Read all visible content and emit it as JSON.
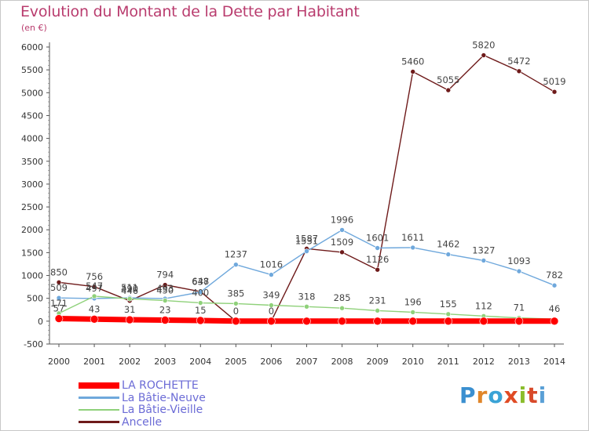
{
  "title": "Evolution du Montant de la Dette par Habitant",
  "unit": "(en €)",
  "logo": {
    "text": "Proxiti",
    "letter_colors": [
      "#3a8fd0",
      "#e0862a",
      "#3aa3d6",
      "#e04b24",
      "#8abd2c",
      "#d84a2a",
      "#5aa0d6"
    ]
  },
  "chart_data": {
    "type": "line",
    "x": [
      "2000",
      "2001",
      "2002",
      "2003",
      "2004",
      "2005",
      "2006",
      "2007",
      "2008",
      "2009",
      "2010",
      "2011",
      "2012",
      "2013",
      "2014"
    ],
    "ylim": [
      -500,
      6000
    ],
    "yticks": [
      -500,
      0,
      500,
      1000,
      1500,
      2000,
      2500,
      3000,
      3500,
      4000,
      4500,
      5000,
      5500,
      6000
    ],
    "grid": false,
    "legend_position": "bottom-left",
    "series": [
      {
        "name": "LA ROCHETTE",
        "color": "#ff0000",
        "values": [
          57,
          43,
          31,
          23,
          15,
          0,
          0,
          0,
          0,
          0,
          0,
          0,
          0,
          0,
          0
        ],
        "labels": [
          "57",
          "43",
          "31",
          "23",
          "15",
          "",
          "",
          "",
          "",
          "",
          "",
          "",
          "",
          "",
          ""
        ]
      },
      {
        "name": "La Bâtie-Neuve",
        "color": "#6fa8dc",
        "values": [
          509,
          497,
          511,
          493,
          637,
          1237,
          1016,
          1531,
          1996,
          1601,
          1611,
          1462,
          1327,
          1093,
          782
        ],
        "labels": [
          "509",
          "497",
          "511",
          "493",
          "637",
          "1237",
          "1016",
          "1531",
          "1996",
          "1601",
          "1611",
          "1462",
          "1327",
          "1093",
          "782"
        ]
      },
      {
        "name": "La Bâtie-Vieille",
        "color": "#8fd17a",
        "values": [
          171,
          547,
          490,
          450,
          400,
          385,
          349,
          318,
          285,
          231,
          196,
          155,
          112,
          71,
          46
        ],
        "labels": [
          "171",
          "547",
          "490",
          "450",
          "400",
          "385",
          "349",
          "318",
          "285",
          "231",
          "196",
          "155",
          "112",
          "71",
          "46"
        ]
      },
      {
        "name": "Ancelle",
        "color": "#6e1a1a",
        "values": [
          850,
          756,
          446,
          794,
          648,
          0,
          0,
          1587,
          1509,
          1126,
          5460,
          5055,
          5820,
          5472,
          5019
        ],
        "labels": [
          "850",
          "756",
          "446",
          "794",
          "648",
          "0",
          "0",
          "1587",
          "1509",
          "1126",
          "5460",
          "5055",
          "5820",
          "5472",
          "5019"
        ]
      }
    ]
  }
}
